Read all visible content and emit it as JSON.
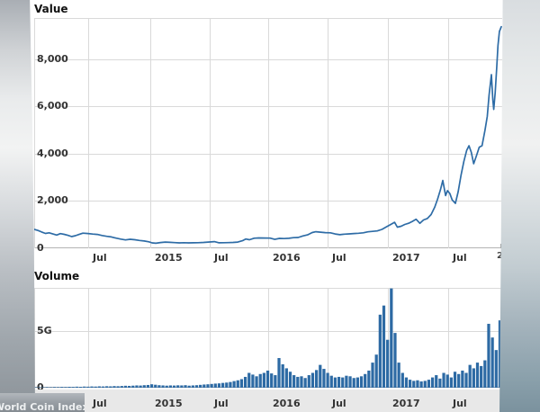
{
  "watermark": {
    "text": "World Coin Index"
  },
  "colors": {
    "line": "#2e6ca6",
    "bar": "#2d6aa4",
    "grid": "#d9d9d9",
    "zero_axis": "#b3b3b3",
    "volume_axis": "#a6a6a6",
    "label": "#333333",
    "strip_bg": "#e8e8e8"
  },
  "chart_data": [
    {
      "type": "line",
      "title": "Value",
      "xlabel": "",
      "ylabel": "",
      "ylim": [
        0,
        9750
      ],
      "grid": true,
      "legend": "none",
      "y_ticks": [
        {
          "label": "8,000",
          "value": 8000
        },
        {
          "label": "6,000",
          "value": 6000
        },
        {
          "label": "4,000",
          "value": 4000
        },
        {
          "label": "2,000",
          "value": 2000
        },
        {
          "label": "0",
          "value": 0
        }
      ],
      "x_ticks": [
        {
          "label": "Jul",
          "f": 0.1154
        },
        {
          "label": "2015",
          "f": 0.2481
        },
        {
          "label": "Jul",
          "f": 0.375
        },
        {
          "label": "2016",
          "f": 0.5
        },
        {
          "label": "Jul",
          "f": 0.627
        },
        {
          "label": "2017",
          "f": 0.7558
        },
        {
          "label": "Jul",
          "f": 0.8846
        }
      ],
      "partial_axis_label": "2",
      "series": [
        [
          0.0,
          800
        ],
        [
          0.008,
          755
        ],
        [
          0.016,
          690
        ],
        [
          0.024,
          630
        ],
        [
          0.032,
          655
        ],
        [
          0.04,
          605
        ],
        [
          0.048,
          560
        ],
        [
          0.056,
          620
        ],
        [
          0.064,
          590
        ],
        [
          0.072,
          550
        ],
        [
          0.08,
          495
        ],
        [
          0.088,
          535
        ],
        [
          0.096,
          585
        ],
        [
          0.104,
          640
        ],
        [
          0.115,
          625
        ],
        [
          0.125,
          600
        ],
        [
          0.135,
          585
        ],
        [
          0.145,
          540
        ],
        [
          0.155,
          505
        ],
        [
          0.165,
          480
        ],
        [
          0.175,
          430
        ],
        [
          0.185,
          390
        ],
        [
          0.195,
          355
        ],
        [
          0.205,
          380
        ],
        [
          0.215,
          360
        ],
        [
          0.225,
          330
        ],
        [
          0.235,
          310
        ],
        [
          0.245,
          275
        ],
        [
          0.252,
          230
        ],
        [
          0.26,
          215
        ],
        [
          0.27,
          245
        ],
        [
          0.28,
          262
        ],
        [
          0.29,
          250
        ],
        [
          0.3,
          240
        ],
        [
          0.31,
          230
        ],
        [
          0.32,
          236
        ],
        [
          0.33,
          228
        ],
        [
          0.34,
          233
        ],
        [
          0.35,
          238
        ],
        [
          0.362,
          248
        ],
        [
          0.375,
          268
        ],
        [
          0.385,
          283
        ],
        [
          0.395,
          232
        ],
        [
          0.405,
          237
        ],
        [
          0.415,
          241
        ],
        [
          0.425,
          249
        ],
        [
          0.435,
          263
        ],
        [
          0.445,
          320
        ],
        [
          0.452,
          392
        ],
        [
          0.46,
          363
        ],
        [
          0.47,
          428
        ],
        [
          0.48,
          438
        ],
        [
          0.492,
          433
        ],
        [
          0.504,
          430
        ],
        [
          0.514,
          378
        ],
        [
          0.524,
          418
        ],
        [
          0.534,
          413
        ],
        [
          0.544,
          421
        ],
        [
          0.554,
          448
        ],
        [
          0.564,
          456
        ],
        [
          0.574,
          520
        ],
        [
          0.584,
          566
        ],
        [
          0.594,
          665
        ],
        [
          0.602,
          700
        ],
        [
          0.612,
          682
        ],
        [
          0.622,
          662
        ],
        [
          0.633,
          656
        ],
        [
          0.643,
          606
        ],
        [
          0.653,
          576
        ],
        [
          0.663,
          598
        ],
        [
          0.673,
          609
        ],
        [
          0.683,
          626
        ],
        [
          0.693,
          636
        ],
        [
          0.703,
          656
        ],
        [
          0.713,
          696
        ],
        [
          0.723,
          716
        ],
        [
          0.733,
          736
        ],
        [
          0.743,
          800
        ],
        [
          0.754,
          920
        ],
        [
          0.762,
          1010
        ],
        [
          0.77,
          1100
        ],
        [
          0.776,
          895
        ],
        [
          0.784,
          935
        ],
        [
          0.792,
          1010
        ],
        [
          0.8,
          1060
        ],
        [
          0.808,
          1140
        ],
        [
          0.816,
          1230
        ],
        [
          0.824,
          1060
        ],
        [
          0.832,
          1200
        ],
        [
          0.84,
          1260
        ],
        [
          0.848,
          1430
        ],
        [
          0.856,
          1750
        ],
        [
          0.862,
          2080
        ],
        [
          0.868,
          2480
        ],
        [
          0.873,
          2870
        ],
        [
          0.879,
          2230
        ],
        [
          0.883,
          2440
        ],
        [
          0.888,
          2320
        ],
        [
          0.893,
          2050
        ],
        [
          0.9,
          1900
        ],
        [
          0.906,
          2400
        ],
        [
          0.912,
          3080
        ],
        [
          0.918,
          3680
        ],
        [
          0.924,
          4140
        ],
        [
          0.929,
          4340
        ],
        [
          0.934,
          4060
        ],
        [
          0.939,
          3580
        ],
        [
          0.945,
          3920
        ],
        [
          0.951,
          4280
        ],
        [
          0.957,
          4340
        ],
        [
          0.963,
          4980
        ],
        [
          0.968,
          5580
        ],
        [
          0.972,
          6480
        ],
        [
          0.977,
          7350
        ],
        [
          0.98,
          6280
        ],
        [
          0.982,
          5880
        ],
        [
          0.985,
          6580
        ],
        [
          0.988,
          7580
        ],
        [
          0.991,
          8580
        ],
        [
          0.994,
          9180
        ],
        [
          0.998,
          9380
        ]
      ]
    },
    {
      "type": "bar",
      "title": "Volume",
      "xlabel": "",
      "ylabel": "",
      "ylim": [
        0,
        8.75
      ],
      "unit": "G",
      "grid": true,
      "legend": "none",
      "y_ticks": [
        {
          "label": "5G",
          "value": 5
        },
        {
          "label": "0",
          "value": 0
        }
      ],
      "x_ticks": [
        {
          "label": "Jul",
          "f": 0.1154
        },
        {
          "label": "2015",
          "f": 0.2481
        },
        {
          "label": "Jul",
          "f": 0.375
        },
        {
          "label": "2016",
          "f": 0.5
        },
        {
          "label": "Jul",
          "f": 0.627
        },
        {
          "label": "2017",
          "f": 0.7558
        },
        {
          "label": "Jul",
          "f": 0.8846
        }
      ],
      "values": [
        0.03,
        0.04,
        0.03,
        0.05,
        0.04,
        0.06,
        0.05,
        0.07,
        0.06,
        0.08,
        0.07,
        0.09,
        0.08,
        0.1,
        0.09,
        0.11,
        0.1,
        0.12,
        0.11,
        0.13,
        0.12,
        0.14,
        0.13,
        0.15,
        0.17,
        0.16,
        0.18,
        0.2,
        0.19,
        0.22,
        0.24,
        0.3,
        0.26,
        0.22,
        0.2,
        0.18,
        0.2,
        0.19,
        0.21,
        0.2,
        0.22,
        0.18,
        0.2,
        0.22,
        0.25,
        0.28,
        0.3,
        0.33,
        0.36,
        0.38,
        0.42,
        0.45,
        0.5,
        0.58,
        0.65,
        0.75,
        0.95,
        1.3,
        1.15,
        1.0,
        1.2,
        1.3,
        1.5,
        1.25,
        1.1,
        2.6,
        2.05,
        1.7,
        1.4,
        1.1,
        0.95,
        1.0,
        0.85,
        1.1,
        1.3,
        1.55,
        2.0,
        1.65,
        1.3,
        1.05,
        0.9,
        0.95,
        0.9,
        1.05,
        1.0,
        0.85,
        0.9,
        1.0,
        1.2,
        1.5,
        2.2,
        2.9,
        6.4,
        7.2,
        4.2,
        8.7,
        4.8,
        2.2,
        1.3,
        0.9,
        0.7,
        0.6,
        0.65,
        0.55,
        0.6,
        0.7,
        0.9,
        1.1,
        0.8,
        1.3,
        1.15,
        0.9,
        1.4,
        1.2,
        1.5,
        1.3,
        2.0,
        1.7,
        2.2,
        1.9,
        2.4,
        5.6,
        4.4,
        3.3,
        5.9
      ]
    }
  ]
}
